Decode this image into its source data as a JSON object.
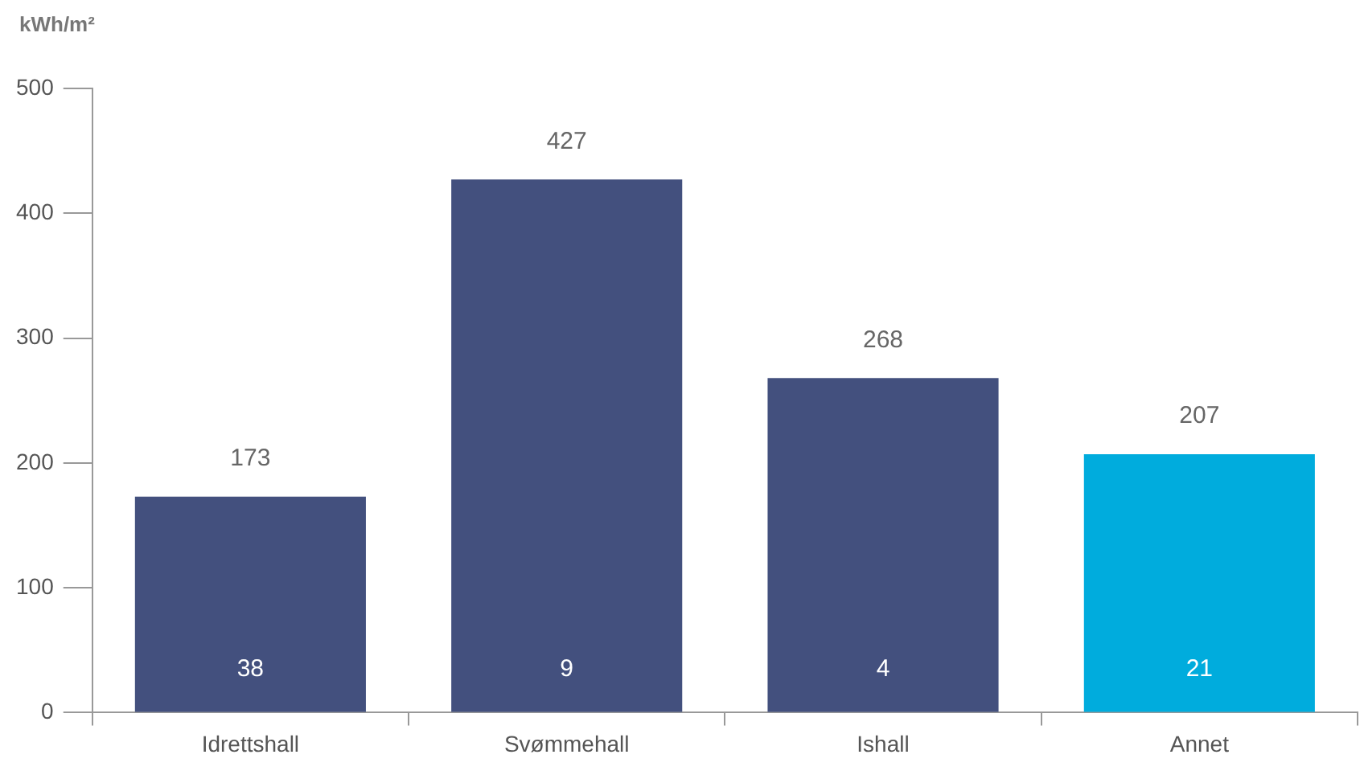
{
  "chart_data": {
    "type": "bar",
    "ylabel": "kWh/m²",
    "categories": [
      "Idrettshall",
      "Svømmehall",
      "Ishall",
      "Annet"
    ],
    "values": [
      173,
      427,
      268,
      207
    ],
    "colors": [
      "#43507e",
      "#43507e",
      "#43507e",
      "#00acdd"
    ],
    "ylim": [
      0,
      500
    ],
    "yticks": [
      0,
      100,
      200,
      300,
      400,
      500
    ],
    "grid": false,
    "legend": false,
    "data_labels": true,
    "annotations": [
      "38",
      "9",
      "4",
      "21"
    ]
  }
}
